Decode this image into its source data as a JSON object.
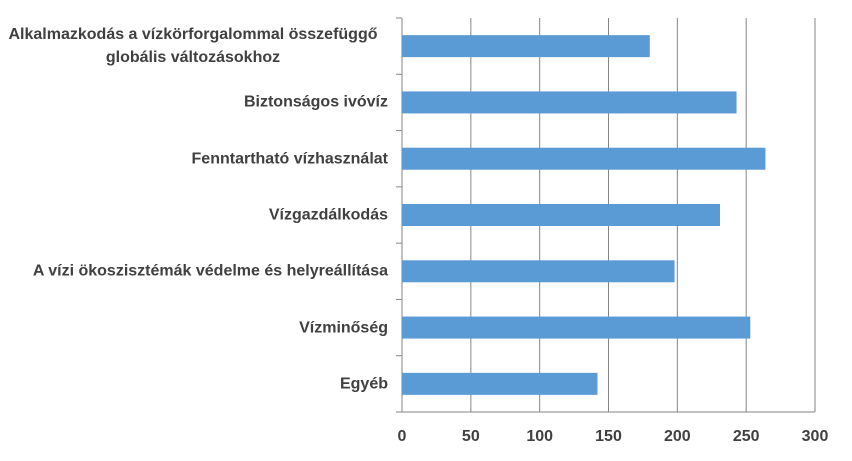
{
  "chart_data": {
    "type": "bar",
    "orientation": "horizontal",
    "categories": [
      "Alkalmazkodás a vízkörforgalommal összefüggő globális változásokhoz",
      "Biztonságos ivóvíz",
      "Fenntartható vízhasználat",
      "Vízgazdálkodás",
      "A vízi ökoszisztémák védelme és helyreállítása",
      "Vízminőség",
      "Egyéb"
    ],
    "values": [
      180,
      243,
      264,
      231,
      198,
      253,
      142
    ],
    "color": "#5b9bd5",
    "xlim": [
      0,
      300
    ],
    "xticks": [
      0,
      50,
      100,
      150,
      200,
      250,
      300
    ],
    "grid": true
  }
}
